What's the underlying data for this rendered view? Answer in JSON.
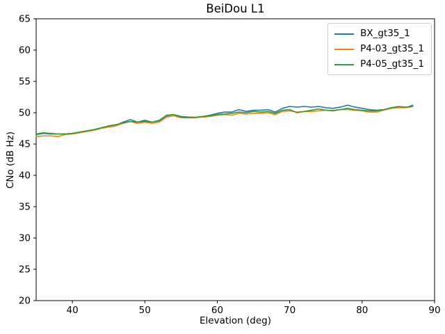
{
  "chart_data": {
    "type": "line",
    "title": "BeiDou L1",
    "xlabel": "Elevation (deg)",
    "ylabel": "CNo (dB Hz)",
    "xlim": [
      35,
      90
    ],
    "ylim": [
      20,
      65
    ],
    "xticks": [
      40,
      50,
      60,
      70,
      80,
      90
    ],
    "yticks": [
      20,
      25,
      30,
      35,
      40,
      45,
      50,
      55,
      60,
      65
    ],
    "grid": false,
    "legend_position": "upper right",
    "x": [
      35,
      36,
      37,
      38,
      39,
      40,
      41,
      42,
      43,
      44,
      45,
      46,
      47,
      48,
      49,
      50,
      51,
      52,
      53,
      54,
      55,
      56,
      57,
      58,
      59,
      60,
      61,
      62,
      63,
      64,
      65,
      66,
      67,
      68,
      69,
      70,
      71,
      72,
      73,
      74,
      75,
      76,
      77,
      78,
      79,
      80,
      81,
      82,
      83,
      84,
      85,
      86,
      87
    ],
    "series": [
      {
        "name": "BX_gt35_1",
        "color": "#1f77b4",
        "values": [
          46.5,
          46.7,
          46.6,
          46.6,
          46.6,
          46.7,
          46.9,
          47.1,
          47.3,
          47.6,
          47.8,
          48.0,
          48.5,
          48.9,
          48.5,
          48.8,
          48.5,
          48.7,
          49.5,
          49.7,
          49.4,
          49.3,
          49.3,
          49.4,
          49.6,
          49.9,
          50.1,
          50.1,
          50.5,
          50.2,
          50.4,
          50.4,
          50.5,
          50.1,
          50.7,
          51.0,
          50.9,
          51.0,
          50.9,
          51.0,
          50.8,
          50.7,
          50.9,
          51.2,
          50.9,
          50.7,
          50.5,
          50.4,
          50.5,
          50.7,
          50.9,
          50.8,
          51.2
        ]
      },
      {
        "name": "P4-03_gt35_1",
        "color": "#ff7f0e",
        "values": [
          46.2,
          46.3,
          46.3,
          46.2,
          46.5,
          46.6,
          46.8,
          47.0,
          47.2,
          47.5,
          47.7,
          47.9,
          48.3,
          48.6,
          48.3,
          48.5,
          48.3,
          48.5,
          49.3,
          49.5,
          49.2,
          49.2,
          49.3,
          49.3,
          49.4,
          49.6,
          49.7,
          49.6,
          49.9,
          49.8,
          49.9,
          49.9,
          50.0,
          49.7,
          50.2,
          50.3,
          50.1,
          50.2,
          50.2,
          50.3,
          50.4,
          50.4,
          50.5,
          50.5,
          50.4,
          50.3,
          50.1,
          50.1,
          50.4,
          50.7,
          50.8,
          50.8,
          51.0
        ]
      },
      {
        "name": "P4-05_gt35_1",
        "color": "#2ca02c",
        "values": [
          46.6,
          46.8,
          46.7,
          46.6,
          46.6,
          46.7,
          46.9,
          47.1,
          47.3,
          47.6,
          47.9,
          48.1,
          48.4,
          48.6,
          48.5,
          48.6,
          48.5,
          48.8,
          49.6,
          49.7,
          49.3,
          49.2,
          49.2,
          49.4,
          49.5,
          49.7,
          49.8,
          49.9,
          50.1,
          50.0,
          50.2,
          50.1,
          50.2,
          49.9,
          50.4,
          50.5,
          50.0,
          50.2,
          50.4,
          50.6,
          50.4,
          50.3,
          50.5,
          50.7,
          50.5,
          50.4,
          50.3,
          50.3,
          50.5,
          50.8,
          51.0,
          50.9,
          51.0
        ]
      }
    ]
  }
}
